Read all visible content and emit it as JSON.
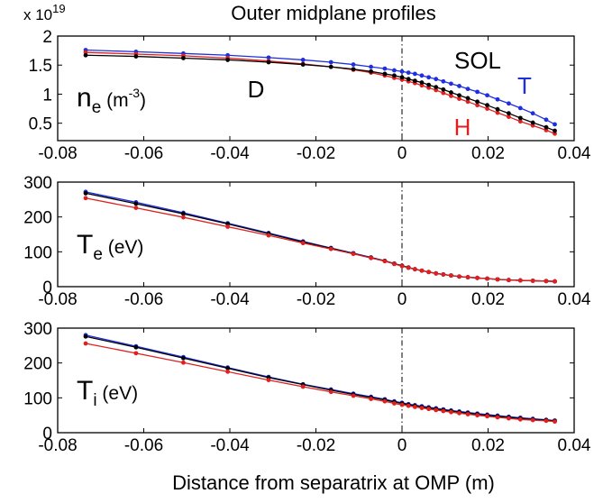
{
  "chart_data": {
    "type": "line",
    "title": "Outer midplane profiles",
    "xlabel": "Distance from separatrix at OMP (m)",
    "x": [
      -0.0735,
      -0.0618,
      -0.0508,
      -0.0405,
      -0.031,
      -0.023,
      -0.0165,
      -0.0113,
      -0.0072,
      -0.004,
      -0.0018,
      0.0,
      0.0015,
      0.003,
      0.0046,
      0.0062,
      0.0079,
      0.0096,
      0.0114,
      0.0133,
      0.0153,
      0.0175,
      0.0198,
      0.0222,
      0.0248,
      0.0275,
      0.0304,
      0.0335,
      0.0355
    ],
    "xlim": [
      -0.08,
      0.04
    ],
    "xticks": [
      "-0.08",
      "-0.06",
      "-0.04",
      "-0.02",
      "0",
      "0.02",
      "0.04"
    ],
    "separatrix_x": 0,
    "colors": {
      "D": "#000000",
      "T": "#1f2fe0",
      "H": "#e01f1f"
    },
    "panels": [
      {
        "id": "ne",
        "ylabel_main": "n",
        "ylabel_sub": "e",
        "ylabel_unit_pre": "(m",
        "ylabel_unit_sup": "-3",
        "ylabel_unit_post": ")",
        "y_exponent_base": "x 10",
        "y_exponent_power": "19",
        "ylim": [
          0.2,
          2.0
        ],
        "yticks": [
          "0.5",
          "1",
          "1.5",
          "2"
        ],
        "annotations": {
          "D": "D",
          "SOL": "SOL",
          "T": "T",
          "H": "H"
        },
        "series": [
          {
            "name": "T",
            "values": [
              1.76,
              1.73,
              1.7,
              1.67,
              1.63,
              1.59,
              1.55,
              1.51,
              1.47,
              1.44,
              1.41,
              1.39,
              1.37,
              1.35,
              1.32,
              1.29,
              1.26,
              1.22,
              1.18,
              1.14,
              1.09,
              1.04,
              0.98,
              0.91,
              0.84,
              0.76,
              0.67,
              0.56,
              0.48
            ]
          },
          {
            "name": "H",
            "values": [
              1.72,
              1.69,
              1.66,
              1.62,
              1.57,
              1.52,
              1.47,
              1.42,
              1.37,
              1.32,
              1.28,
              1.25,
              1.22,
              1.19,
              1.15,
              1.11,
              1.07,
              1.02,
              0.97,
              0.92,
              0.87,
              0.81,
              0.75,
              0.68,
              0.61,
              0.53,
              0.46,
              0.38,
              0.32
            ]
          },
          {
            "name": "D",
            "values": [
              1.67,
              1.65,
              1.62,
              1.59,
              1.55,
              1.51,
              1.47,
              1.43,
              1.39,
              1.35,
              1.32,
              1.29,
              1.26,
              1.23,
              1.2,
              1.16,
              1.12,
              1.08,
              1.03,
              0.98,
              0.93,
              0.87,
              0.81,
              0.74,
              0.67,
              0.59,
              0.51,
              0.43,
              0.37
            ]
          }
        ]
      },
      {
        "id": "te",
        "ylabel_main": "T",
        "ylabel_sub": "e",
        "ylabel_unit_pre": "(eV)",
        "ylim": [
          0,
          300
        ],
        "yticks": [
          "0",
          "100",
          "200",
          "300"
        ],
        "series": [
          {
            "name": "T",
            "values": [
              272,
              242,
              212,
              182,
              154,
              130,
              111,
              96,
              84,
              74,
              66,
              60,
              55,
              50,
              46,
              42,
              38,
              35,
              32,
              29,
              27,
              25,
              23,
              21,
              19,
              18,
              17,
              16,
              15
            ]
          },
          {
            "name": "D",
            "values": [
              268,
              238,
              209,
              180,
              152,
              128,
              110,
              95,
              83,
              74,
              66,
              60,
              55,
              50,
              46,
              42,
              38,
              35,
              32,
              29,
              27,
              25,
              23,
              21,
              19,
              18,
              17,
              16,
              15
            ]
          },
          {
            "name": "H",
            "values": [
              254,
              226,
              199,
              172,
              147,
              125,
              108,
              94,
              82,
              73,
              65,
              59,
              54,
              50,
              46,
              42,
              38,
              35,
              32,
              29,
              27,
              25,
              23,
              21,
              19,
              18,
              17,
              16,
              15
            ]
          }
        ]
      },
      {
        "id": "ti",
        "ylabel_main": "T",
        "ylabel_sub": "i",
        "ylabel_unit_pre": "(eV)",
        "ylim": [
          0,
          300
        ],
        "yticks": [
          "0",
          "100",
          "200",
          "300"
        ],
        "series": [
          {
            "name": "T",
            "values": [
              280,
              248,
              217,
              187,
              160,
              139,
              124,
              112,
              103,
              96,
              90,
              86,
              82,
              79,
              76,
              73,
              70,
              67,
              64,
              61,
              58,
              55,
              52,
              49,
              46,
              43,
              40,
              37,
              35
            ]
          },
          {
            "name": "D",
            "values": [
              276,
              245,
              214,
              185,
              158,
              138,
              122,
              110,
              101,
              94,
              88,
              84,
              80,
              77,
              74,
              71,
              68,
              65,
              62,
              59,
              56,
              53,
              50,
              47,
              44,
              41,
              38,
              36,
              34
            ]
          },
          {
            "name": "H",
            "values": [
              256,
              228,
              201,
              175,
              151,
              132,
              117,
              106,
              97,
              90,
              84,
              80,
              77,
              74,
              71,
              68,
              65,
              62,
              59,
              56,
              53,
              50,
              47,
              44,
              41,
              38,
              36,
              34,
              32
            ]
          }
        ]
      }
    ]
  }
}
